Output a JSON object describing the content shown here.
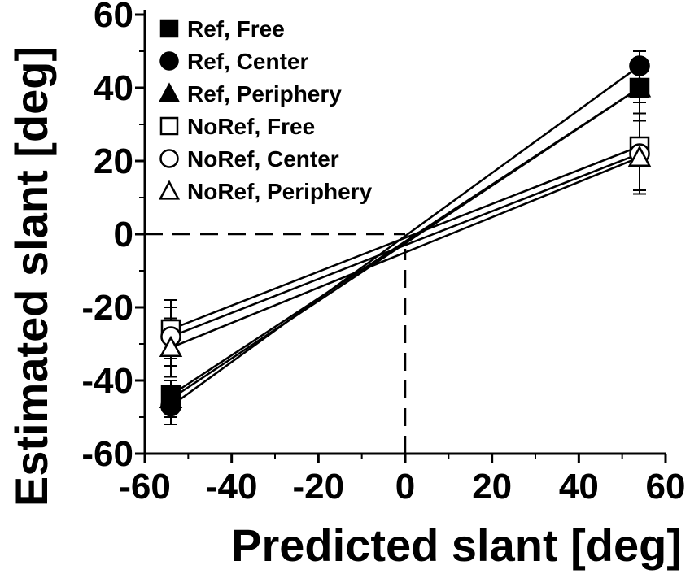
{
  "chart_data": {
    "type": "line",
    "title": "",
    "xlabel": "Predicted slant [deg]",
    "ylabel": "Estimated slant [deg]",
    "xlim": [
      -60,
      60
    ],
    "ylim": [
      -60,
      60
    ],
    "xticks": [
      -60,
      -40,
      -20,
      0,
      20,
      40,
      60
    ],
    "yticks": [
      -60,
      -40,
      -20,
      0,
      20,
      40,
      60
    ],
    "grid": false,
    "legend_position": "top-left",
    "reference_lines": {
      "x": 0,
      "y": 0,
      "style": "dashed"
    },
    "x": [
      -54,
      54
    ],
    "series": [
      {
        "name": "Ref, Free",
        "marker": "square",
        "fill": "filled",
        "values": [
          -44,
          40
        ],
        "error": [
          4,
          4
        ]
      },
      {
        "name": "Ref, Center",
        "marker": "circle",
        "fill": "filled",
        "values": [
          -47,
          46
        ],
        "error": [
          5,
          4
        ]
      },
      {
        "name": "Ref, Periphery",
        "marker": "triangle",
        "fill": "filled",
        "values": [
          -45,
          40
        ],
        "error": [
          5,
          4
        ]
      },
      {
        "name": "NoRef, Free",
        "marker": "square",
        "fill": "open",
        "values": [
          -26,
          24
        ],
        "error": [
          8,
          12
        ]
      },
      {
        "name": "NoRef, Center",
        "marker": "circle",
        "fill": "open",
        "values": [
          -28,
          22
        ],
        "error": [
          8,
          11
        ]
      },
      {
        "name": "NoRef, Periphery",
        "marker": "triangle",
        "fill": "open",
        "values": [
          -31,
          21
        ],
        "error": [
          8,
          10
        ]
      }
    ]
  }
}
